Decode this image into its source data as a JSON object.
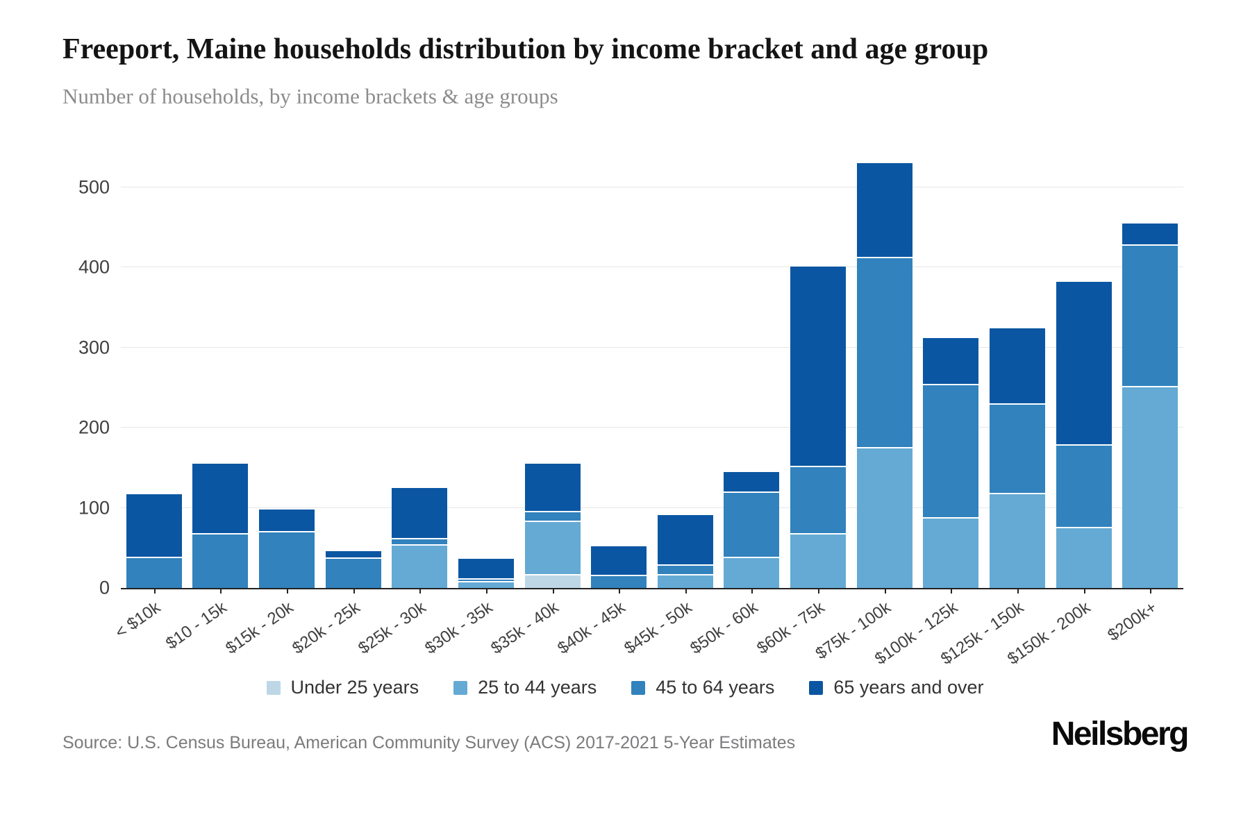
{
  "header": {
    "title": "Freeport, Maine households distribution by income bracket and age group",
    "subtitle": "Number of households, by income brackets & age groups"
  },
  "chart_data": {
    "type": "bar",
    "stacked": true,
    "title": "Freeport, Maine households distribution by income bracket and age group",
    "subtitle": "Number of households, by income brackets & age groups",
    "xlabel": "",
    "ylabel": "",
    "ylim": [
      0,
      550
    ],
    "y_ticks": [
      0,
      100,
      200,
      300,
      400,
      500
    ],
    "grid": true,
    "legend_position": "bottom",
    "categories": [
      "< $10k",
      "$10 - 15k",
      "$15k - 20k",
      "$20k - 25k",
      "$25k - 30k",
      "$30k - 35k",
      "$35k - 40k",
      "$40k - 45k",
      "$45k - 50k",
      "$50k - 60k",
      "$60k - 75k",
      "$75k - 100k",
      "$100k - 125k",
      "$125k - 150k",
      "$150k - 200k",
      "$200k+"
    ],
    "series": [
      {
        "name": "Under 25 years",
        "color": "#bdd7e7",
        "values": [
          0,
          0,
          0,
          0,
          0,
          0,
          16,
          0,
          0,
          0,
          0,
          0,
          0,
          0,
          0,
          0
        ]
      },
      {
        "name": "25 to 44 years",
        "color": "#64aad4",
        "values": [
          0,
          0,
          0,
          0,
          53,
          7,
          67,
          0,
          16,
          38,
          67,
          174,
          87,
          117,
          75,
          251
        ]
      },
      {
        "name": "45 to 64 years",
        "color": "#3182bd",
        "values": [
          38,
          67,
          70,
          37,
          8,
          4,
          12,
          15,
          12,
          81,
          84,
          238,
          166,
          112,
          103,
          176
        ]
      },
      {
        "name": "65 years and over",
        "color": "#0b56a2",
        "values": [
          79,
          88,
          28,
          9,
          64,
          26,
          60,
          37,
          63,
          26,
          250,
          118,
          59,
          95,
          204,
          28
        ]
      }
    ],
    "totals": [
      117,
      155,
      98,
      46,
      125,
      37,
      155,
      52,
      91,
      145,
      401,
      530,
      312,
      324,
      382,
      455
    ]
  },
  "footer": {
    "source": "Source: U.S. Census Bureau, American Community Survey (ACS) 2017-2021 5-Year Estimates",
    "logo": "Neilsberg"
  }
}
